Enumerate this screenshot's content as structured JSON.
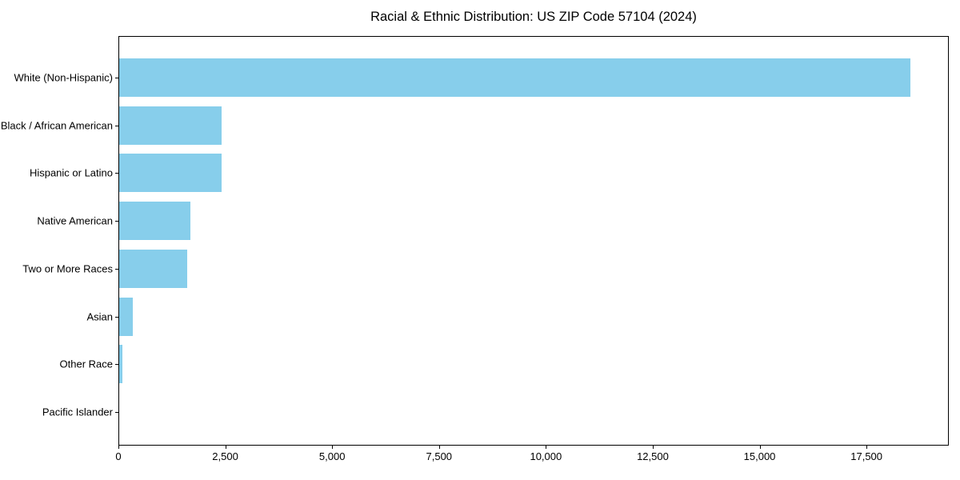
{
  "chart_data": {
    "type": "bar",
    "orientation": "horizontal",
    "title": "Racial & Ethnic Distribution: US ZIP Code 57104 (2024)",
    "categories": [
      "White (Non-Hispanic)",
      "Black / African American",
      "Hispanic or Latino",
      "Native American",
      "Two or More Races",
      "Asian",
      "Other Race",
      "Pacific Islander"
    ],
    "values": [
      18500,
      2390,
      2400,
      1660,
      1600,
      320,
      70,
      0
    ],
    "xlabel": "",
    "ylabel": "",
    "xlim": [
      0,
      19425
    ],
    "x_ticks": [
      0,
      2500,
      5000,
      7500,
      10000,
      12500,
      15000,
      17500
    ],
    "x_tick_labels": [
      "0",
      "2,500",
      "5,000",
      "7,500",
      "10,000",
      "12,500",
      "15,000",
      "17,500"
    ],
    "bar_color": "#87CEEB",
    "background_color": "#ffffff",
    "axis_color": "#000000",
    "grid": false,
    "legend": false
  }
}
